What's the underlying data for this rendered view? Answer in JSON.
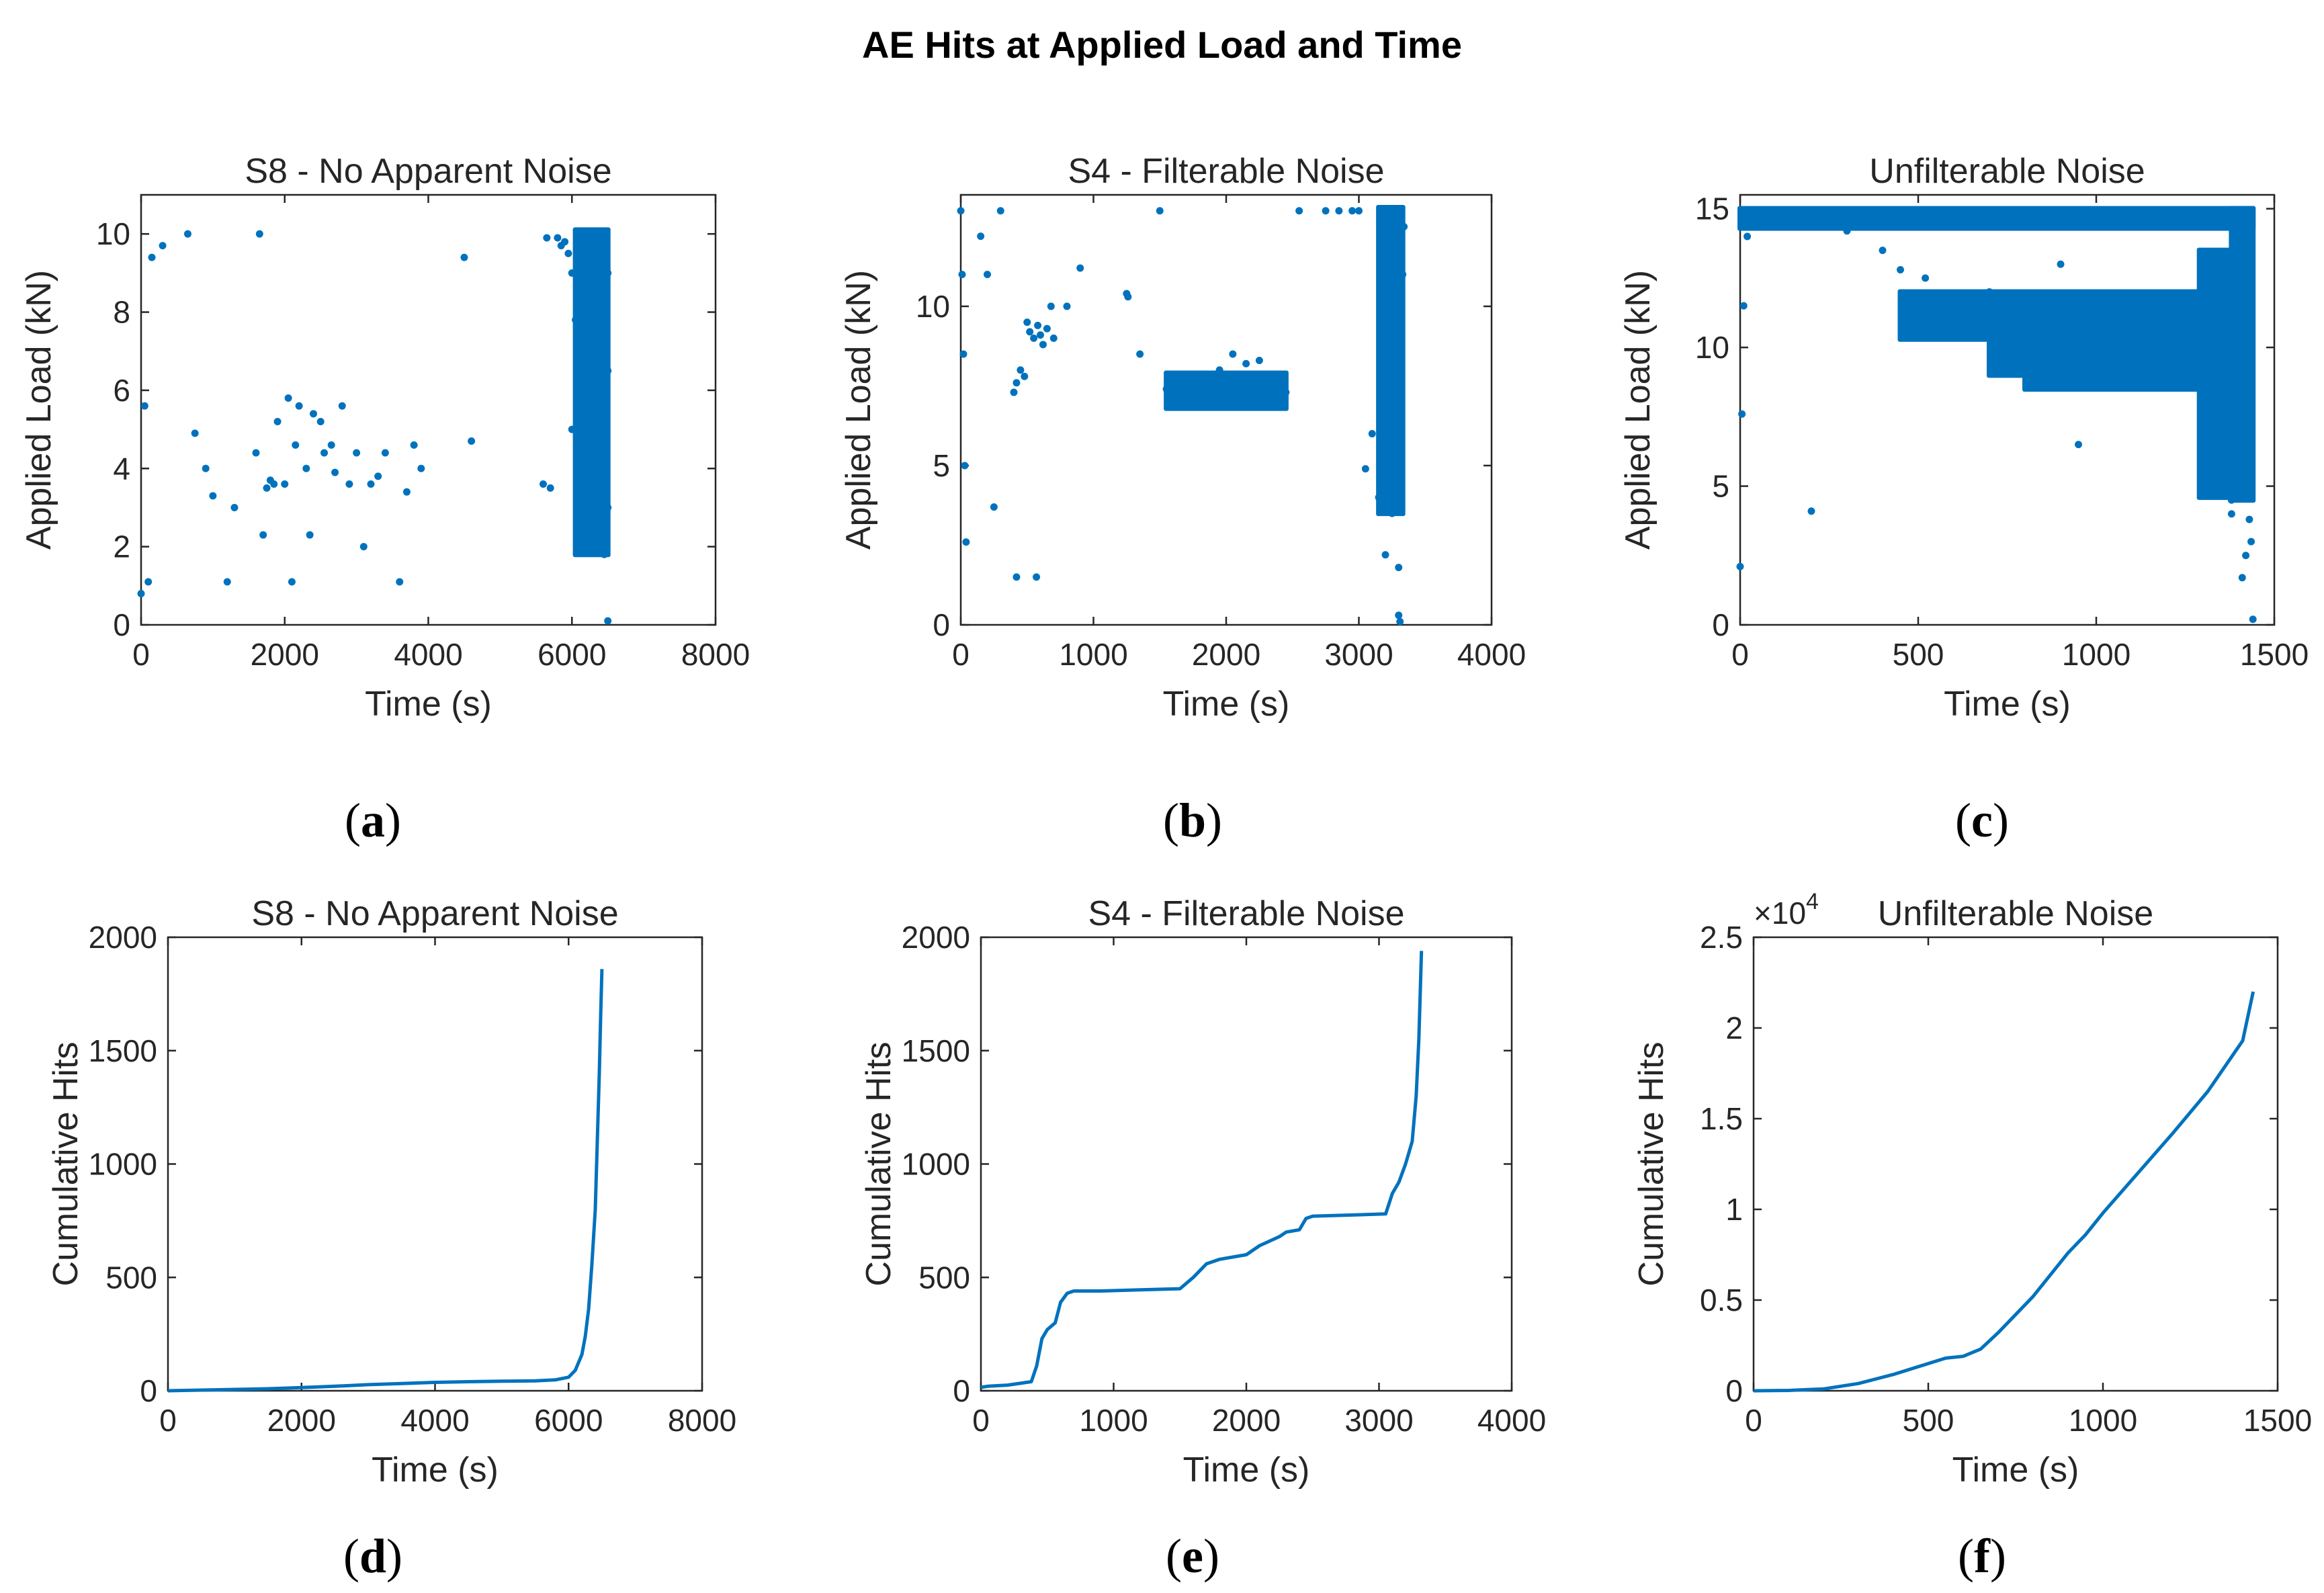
{
  "figure_title": "AE Hits at Applied Load and Time",
  "series_color": "#0072BD",
  "panel_labels": [
    "a",
    "b",
    "c",
    "d",
    "e",
    "f"
  ],
  "chart_data": [
    {
      "type": "scatter",
      "title": "S8 - No Apparent Noise",
      "xlabel": "Time (s)",
      "ylabel": "Applied Load (kN)",
      "xlim": [
        0,
        8000
      ],
      "ylim": [
        0,
        11
      ],
      "xticks": [
        0,
        2000,
        4000,
        6000,
        8000
      ],
      "yticks": [
        0,
        2,
        4,
        6,
        8,
        10
      ],
      "x": [
        0,
        50,
        100,
        150,
        300,
        650,
        750,
        900,
        1000,
        1200,
        1300,
        1600,
        1650,
        1700,
        1750,
        1800,
        1850,
        1900,
        2000,
        2050,
        2100,
        2150,
        2200,
        2300,
        2350,
        2400,
        2500,
        2550,
        2650,
        2700,
        2800,
        2900,
        3000,
        3100,
        3200,
        3300,
        3400,
        3600,
        3700,
        3800,
        3900,
        4500,
        4600,
        5600,
        5650,
        5700,
        5800,
        5850,
        5900,
        5950,
        6000,
        6000,
        6050,
        6100,
        6100,
        6150,
        6150,
        6200,
        6200,
        6250,
        6250,
        6300,
        6300,
        6300,
        6350,
        6350,
        6350,
        6400,
        6400,
        6400,
        6450,
        6450,
        6450,
        6450,
        6500,
        6500,
        6500,
        6500,
        6450,
        6400,
        6350,
        6300,
        6250,
        6200,
        6150
      ],
      "y": [
        0.8,
        5.6,
        1.1,
        9.4,
        9.7,
        10.0,
        4.9,
        4.0,
        3.3,
        1.1,
        3.0,
        4.4,
        10.0,
        2.3,
        3.5,
        3.7,
        3.6,
        5.2,
        3.6,
        5.8,
        1.1,
        4.6,
        5.6,
        4.0,
        2.3,
        5.4,
        5.2,
        4.4,
        4.6,
        3.9,
        5.6,
        3.6,
        4.4,
        2.0,
        3.6,
        3.8,
        4.4,
        1.1,
        3.4,
        4.6,
        4.0,
        9.4,
        4.7,
        3.6,
        9.9,
        3.5,
        9.9,
        9.7,
        9.8,
        9.5,
        5.0,
        9.0,
        7.8,
        4.6,
        9.6,
        3.4,
        8.5,
        6.8,
        9.9,
        2.8,
        8.0,
        5.0,
        9.5,
        2.0,
        6.0,
        9.0,
        3.8,
        7.0,
        9.8,
        2.2,
        4.5,
        8.2,
        10.0,
        1.8,
        3.0,
        6.5,
        9.0,
        0.1,
        5.5,
        7.5,
        8.8,
        9.2,
        10.0,
        10.0,
        10.0
      ],
      "dense_regions": [
        {
          "x_min": 6050,
          "x_max": 6500,
          "y_min": 1.8,
          "y_max": 10.1
        }
      ]
    },
    {
      "type": "scatter",
      "title": "S4 - Filterable Noise",
      "xlabel": "Time (s)",
      "ylabel": "Applied Load (kN)",
      "xlim": [
        0,
        4000
      ],
      "ylim": [
        0,
        13.5
      ],
      "xticks": [
        0,
        1000,
        2000,
        3000,
        4000
      ],
      "yticks": [
        0,
        5,
        10
      ],
      "x": [
        0,
        10,
        20,
        30,
        40,
        400,
        420,
        450,
        480,
        500,
        520,
        550,
        580,
        600,
        620,
        650,
        680,
        700,
        150,
        200,
        250,
        800,
        900,
        1250,
        1260,
        1350,
        1550,
        1580,
        1600,
        1620,
        1650,
        1680,
        1700,
        1750,
        1800,
        1850,
        1900,
        1950,
        2000,
        2050,
        2100,
        2150,
        2200,
        2250,
        2300,
        2350,
        2400,
        2450,
        420,
        570,
        300,
        1500,
        2550,
        2750,
        2850,
        2950,
        3000,
        3050,
        3100,
        3150,
        3200,
        3220,
        3250,
        3280,
        3300,
        3300,
        3310,
        3320,
        3330,
        3340
      ],
      "y": [
        13.0,
        11.0,
        8.5,
        5.0,
        2.6,
        7.3,
        7.6,
        8.0,
        7.8,
        9.5,
        9.2,
        9.0,
        9.4,
        9.1,
        8.8,
        9.3,
        10.0,
        9.0,
        12.2,
        11.0,
        3.7,
        10.0,
        11.2,
        10.4,
        10.3,
        8.5,
        7.4,
        7.2,
        7.0,
        7.5,
        7.3,
        7.1,
        7.2,
        7.6,
        7.0,
        7.4,
        7.2,
        8.0,
        7.8,
        8.5,
        7.6,
        8.2,
        7.4,
        8.3,
        7.5,
        7.2,
        7.6,
        7.3,
        1.5,
        1.5,
        13.0,
        13.0,
        13.0,
        13.0,
        13.0,
        13.0,
        13.0,
        4.9,
        6.0,
        4.0,
        2.2,
        5.5,
        3.5,
        7.0,
        1.8,
        0.3,
        0.1,
        9.5,
        11.0,
        12.5
      ],
      "dense_regions": [
        {
          "x_min": 3150,
          "x_max": 3330,
          "y_min": 3.5,
          "y_max": 13.1
        },
        {
          "x_min": 1550,
          "x_max": 2450,
          "y_min": 6.8,
          "y_max": 7.9
        }
      ]
    },
    {
      "type": "scatter",
      "title": "Unfilterable Noise",
      "xlabel": "Time (s)",
      "ylabel": "Applied Load (kN)",
      "xlim": [
        0,
        1500
      ],
      "ylim": [
        0,
        15.5
      ],
      "xticks": [
        0,
        500,
        1000,
        1500
      ],
      "yticks": [
        0,
        5,
        10,
        15
      ],
      "x": [
        0,
        5,
        10,
        20,
        200,
        950,
        1410,
        1420,
        1430,
        1440,
        1435,
        1380,
        1395,
        1400,
        1380,
        300,
        400,
        450,
        520,
        560,
        620,
        700,
        800,
        900
      ],
      "y": [
        2.1,
        7.6,
        11.5,
        14.0,
        4.1,
        6.5,
        1.7,
        2.5,
        3.8,
        0.2,
        3.0,
        4.0,
        5.5,
        6.0,
        4.5,
        14.2,
        13.5,
        12.8,
        12.5,
        10.4,
        11.0,
        12.0,
        10.8,
        13.0
      ],
      "dense_regions": [
        {
          "x_min": 0,
          "x_max": 1440,
          "y_min": 14.3,
          "y_max": 15.0
        },
        {
          "x_min": 450,
          "x_max": 1430,
          "y_min": 10.3,
          "y_max": 12.0
        },
        {
          "x_min": 800,
          "x_max": 1430,
          "y_min": 8.5,
          "y_max": 8.9
        },
        {
          "x_min": 700,
          "x_max": 1430,
          "y_min": 9.0,
          "y_max": 10.3
        },
        {
          "x_min": 1380,
          "x_max": 1440,
          "y_min": 4.5,
          "y_max": 15.0
        },
        {
          "x_min": 1290,
          "x_max": 1430,
          "y_min": 4.6,
          "y_max": 13.5
        }
      ]
    },
    {
      "type": "line",
      "title": "S8 - No Apparent Noise",
      "xlabel": "Time (s)",
      "ylabel": "Cumulative Hits",
      "xlim": [
        0,
        8000
      ],
      "ylim": [
        0,
        2000
      ],
      "xticks": [
        0,
        2000,
        4000,
        6000,
        8000
      ],
      "yticks": [
        0,
        500,
        1000,
        1500,
        2000
      ],
      "x": [
        0,
        500,
        1000,
        1500,
        2000,
        2500,
        3000,
        3500,
        4000,
        4500,
        5000,
        5500,
        5800,
        6000,
        6100,
        6200,
        6250,
        6300,
        6350,
        6400,
        6420,
        6440,
        6460,
        6480,
        6500
      ],
      "y": [
        0,
        3,
        6,
        9,
        14,
        20,
        27,
        32,
        37,
        40,
        42,
        44,
        48,
        60,
        90,
        160,
        240,
        360,
        560,
        800,
        1000,
        1200,
        1400,
        1650,
        1860
      ]
    },
    {
      "type": "line",
      "title": "S4 - Filterable Noise",
      "xlabel": "Time (s)",
      "ylabel": "Cumulative Hits",
      "xlim": [
        0,
        4000
      ],
      "ylim": [
        0,
        2000
      ],
      "xticks": [
        0,
        1000,
        2000,
        3000,
        4000
      ],
      "yticks": [
        0,
        500,
        1000,
        1500,
        2000
      ],
      "x": [
        0,
        50,
        200,
        380,
        420,
        460,
        500,
        560,
        600,
        650,
        700,
        900,
        1200,
        1500,
        1600,
        1700,
        1800,
        2000,
        2100,
        2250,
        2300,
        2400,
        2450,
        2500,
        2800,
        3050,
        3100,
        3150,
        3200,
        3250,
        3280,
        3300,
        3320
      ],
      "y": [
        15,
        20,
        25,
        40,
        110,
        230,
        270,
        300,
        390,
        430,
        440,
        440,
        445,
        450,
        500,
        560,
        580,
        600,
        640,
        680,
        700,
        710,
        760,
        770,
        775,
        780,
        870,
        920,
        1000,
        1100,
        1300,
        1550,
        1940
      ]
    },
    {
      "type": "line",
      "title": "Unfilterable Noise",
      "xlabel": "Time (s)",
      "ylabel": "Cumulative Hits",
      "axis_multiplier": "×10",
      "axis_multiplier_exponent": "4",
      "xlim": [
        0,
        1500
      ],
      "ylim": [
        0,
        2.5
      ],
      "xticks": [
        0,
        500,
        1000,
        1500
      ],
      "yticks": [
        0,
        0.5,
        1,
        1.5,
        2,
        2.5
      ],
      "ytick_labels": [
        "0",
        "0.5",
        "1",
        "1.5",
        "2",
        "2.5"
      ],
      "x": [
        0,
        100,
        200,
        300,
        400,
        500,
        550,
        600,
        650,
        700,
        800,
        900,
        950,
        1000,
        1100,
        1200,
        1300,
        1400,
        1430
      ],
      "y": [
        0,
        0.002,
        0.01,
        0.04,
        0.09,
        0.15,
        0.18,
        0.19,
        0.23,
        0.32,
        0.52,
        0.76,
        0.86,
        0.98,
        1.2,
        1.42,
        1.65,
        1.93,
        2.2
      ]
    }
  ]
}
